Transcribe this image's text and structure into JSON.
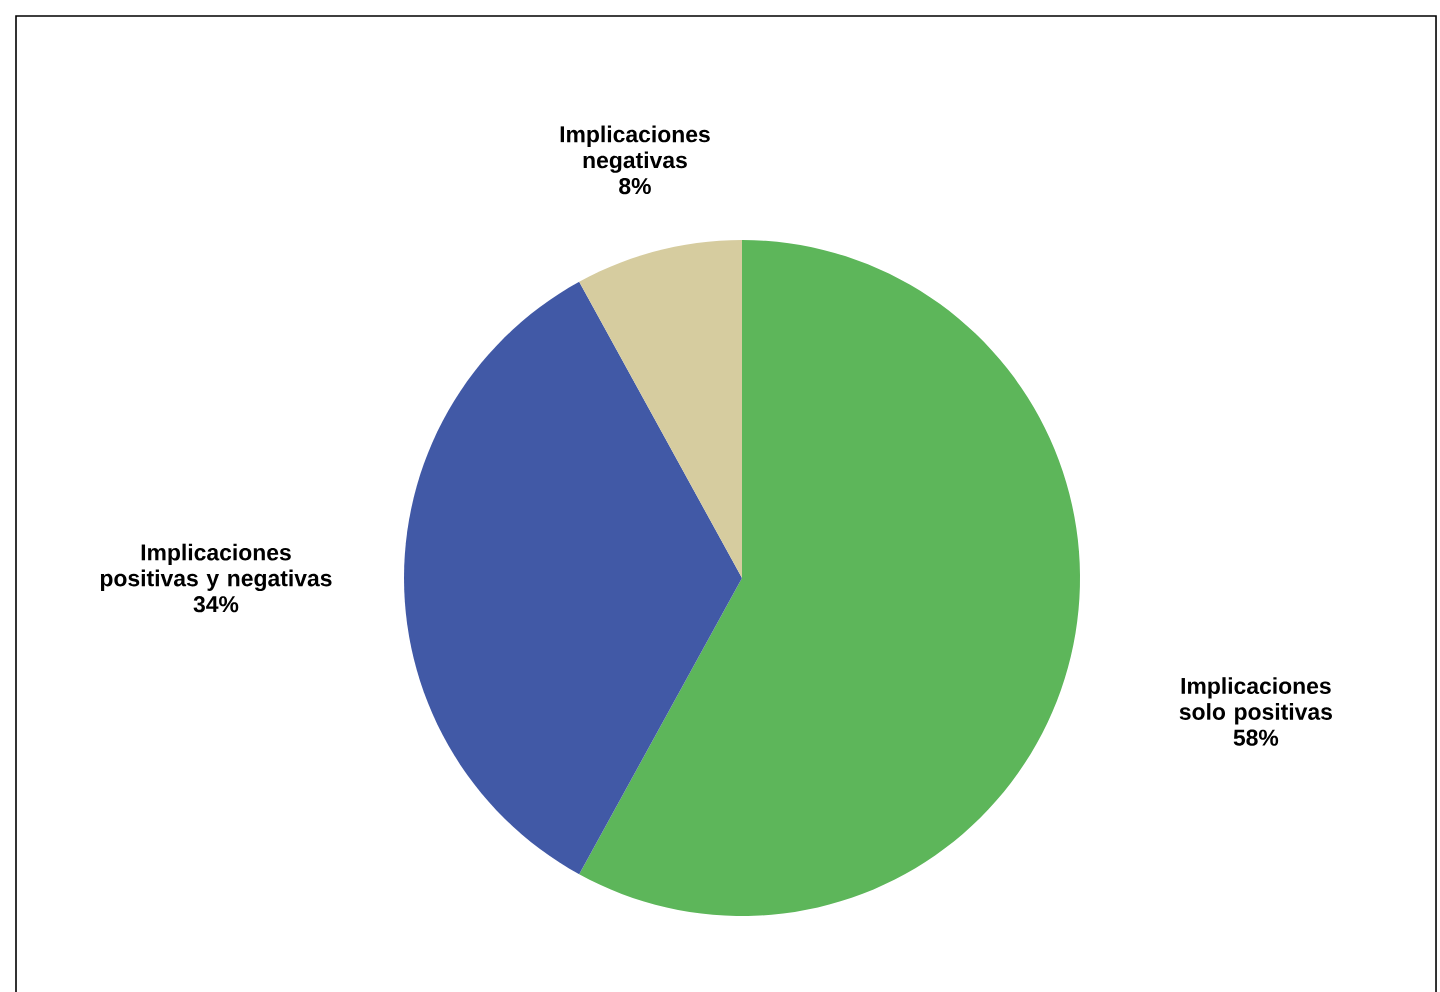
{
  "chart_data": {
    "type": "pie",
    "categories": [
      "Implicaciones solo positivas",
      "Implicaciones positivas y negativas",
      "Implicaciones negativas"
    ],
    "values": [
      58,
      34,
      8
    ],
    "colors": [
      "#5db65a",
      "#4159a6",
      "#d6cc9f"
    ],
    "value_labels": [
      "58%",
      "34%",
      "8%"
    ]
  }
}
